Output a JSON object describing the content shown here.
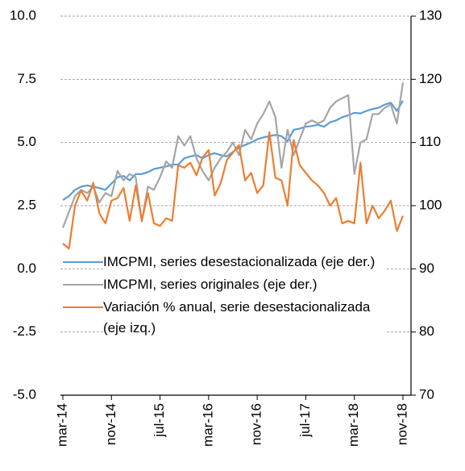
{
  "chart_data": {
    "type": "line",
    "categories": [
      "mar-14",
      null,
      null,
      null,
      null,
      null,
      null,
      null,
      "nov-14",
      null,
      null,
      null,
      null,
      null,
      null,
      null,
      "jul-15",
      null,
      null,
      null,
      null,
      null,
      null,
      null,
      "mar-16",
      null,
      null,
      null,
      null,
      null,
      null,
      null,
      "nov-16",
      null,
      null,
      null,
      null,
      null,
      null,
      null,
      "jul-17",
      null,
      null,
      null,
      null,
      null,
      null,
      null,
      "mar-18",
      null,
      null,
      null,
      null,
      null,
      null,
      null,
      "nov-18"
    ],
    "series": [
      {
        "name": "IMCPMI, series desestacionalizada (eje der.)",
        "color": "#5b9bd5",
        "axis": "y2",
        "values": [
          100.9,
          101.5,
          102.5,
          103.0,
          103.2,
          103.0,
          102.8,
          102.5,
          103.5,
          104.5,
          104.7,
          104.0,
          105.0,
          105.0,
          105.3,
          105.8,
          106.0,
          106.2,
          106.5,
          106.5,
          107.5,
          107.8,
          108.0,
          107.5,
          108.0,
          108.3,
          108.0,
          107.8,
          108.5,
          109.2,
          109.6,
          110.0,
          110.5,
          110.8,
          111.0,
          111.2,
          111.0,
          110.2,
          112.0,
          112.2,
          112.5,
          112.6,
          112.8,
          112.5,
          113.2,
          113.5,
          114.0,
          114.3,
          114.7,
          114.6,
          115.0,
          115.3,
          115.5,
          116.0,
          116.3,
          115.0,
          116.6
        ]
      },
      {
        "name": "IMCPMI, series originales (eje der.)",
        "color": "#a5a5a5",
        "axis": "y2",
        "values": [
          96.5,
          99.0,
          101.5,
          102.5,
          102.0,
          103.0,
          100.5,
          102.0,
          101.5,
          105.5,
          104.0,
          105.0,
          104.5,
          97.5,
          103.0,
          102.5,
          104.5,
          107.0,
          106.0,
          111.0,
          109.5,
          111.0,
          107.5,
          105.5,
          104.0,
          106.0,
          107.5,
          108.5,
          110.0,
          108.0,
          112.0,
          110.5,
          113.0,
          114.5,
          116.5,
          114.0,
          106.0,
          112.0,
          108.0,
          110.5,
          113.0,
          113.5,
          113.0,
          113.5,
          115.5,
          116.5,
          117.0,
          117.5,
          105.0,
          110.0,
          110.5,
          114.5,
          114.5,
          115.5,
          116.0,
          113.0,
          119.5
        ]
      },
      {
        "name": "Variación % anual, serie desestacionalizada (eje izq.)",
        "color": "#ed7d31",
        "values": [
          1.0,
          0.8,
          2.5,
          3.1,
          2.7,
          3.4,
          2.2,
          1.8,
          2.7,
          2.8,
          3.2,
          1.9,
          3.3,
          1.9,
          3.0,
          1.8,
          1.7,
          2.0,
          1.9,
          4.1,
          4.0,
          4.2,
          3.7,
          4.4,
          4.7,
          2.9,
          3.4,
          4.3,
          4.6,
          4.9,
          3.5,
          3.8,
          3.0,
          3.3,
          5.4,
          3.6,
          3.5,
          2.5,
          5.1,
          4.1,
          3.8,
          3.5,
          3.3,
          3.0,
          2.5,
          2.8,
          1.8,
          1.9,
          1.8,
          4.2,
          1.8,
          2.5,
          2.0,
          2.3,
          2.7,
          1.5,
          2.1
        ]
      }
    ],
    "ylim": [
      -5,
      10
    ],
    "yticks": [
      {
        "value": -5,
        "label": "-5.0"
      },
      {
        "value": -2.5,
        "label": "-2.5"
      },
      {
        "value": 0,
        "label": "0.0"
      },
      {
        "value": 2.5,
        "label": "2.5"
      },
      {
        "value": 5,
        "label": "5.0"
      },
      {
        "value": 7.5,
        "label": "7.5"
      },
      {
        "value": 10,
        "label": "10.0"
      }
    ],
    "y2lim": [
      70,
      130
    ],
    "y2ticks": [
      70,
      80,
      90,
      100,
      110,
      120,
      130
    ],
    "grid": true
  }
}
